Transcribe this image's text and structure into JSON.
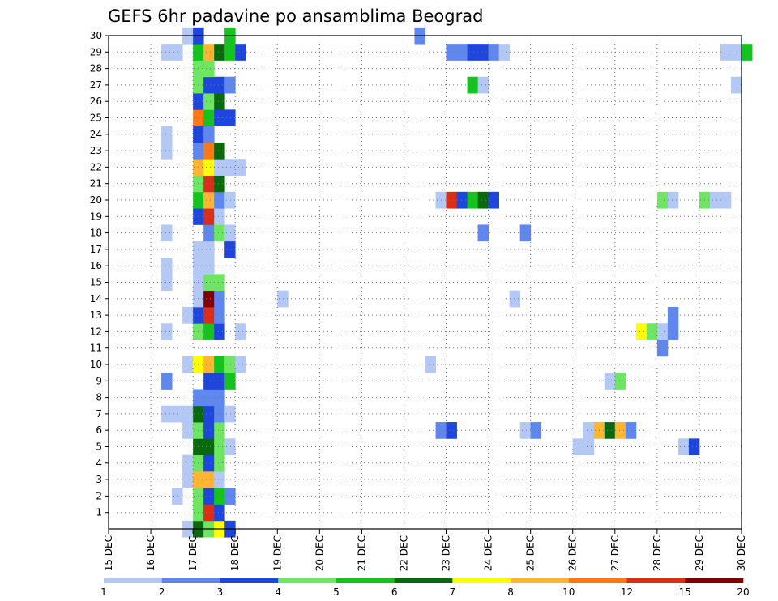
{
  "chart_data": {
    "type": "heatmap",
    "title": "GEFS 6hr padavine po ansamblima Beograd",
    "xlabel": "",
    "ylabel": "",
    "x_tick_labels": [
      "15 DEC",
      "16 DEC",
      "17 DEC",
      "18 DEC",
      "19 DEC",
      "20 DEC",
      "21 DEC",
      "22 DEC",
      "23 DEC",
      "24 DEC",
      "25 DEC",
      "26 DEC",
      "27 DEC",
      "28 DEC",
      "29 DEC",
      "30 DEC"
    ],
    "x_range_days": [
      15,
      30
    ],
    "x_step_hours": 6,
    "y_range": [
      0,
      30
    ],
    "y_tick_labels": [
      "1",
      "2",
      "3",
      "4",
      "5",
      "6",
      "7",
      "8",
      "9",
      "10",
      "11",
      "12",
      "13",
      "14",
      "15",
      "16",
      "17",
      "18",
      "19",
      "20",
      "21",
      "22",
      "23",
      "24",
      "25",
      "26",
      "27",
      "28",
      "29",
      "30"
    ],
    "grid": true,
    "value_unit": "",
    "colorbar": {
      "labels": [
        "1",
        "2",
        "3",
        "4",
        "5",
        "6",
        "7",
        "8",
        "10",
        "12",
        "15",
        "20"
      ],
      "colors": [
        "#b4c8f5",
        "#5f87ee",
        "#1e46dc",
        "#6ee664",
        "#14c31e",
        "#0a690f",
        "#ffff00",
        "#ffb432",
        "#ff7814",
        "#dc2d19",
        "#820000"
      ]
    },
    "levels": [
      {
        "min": 1,
        "max": 2,
        "color": "#b4c8f5"
      },
      {
        "min": 2,
        "max": 3,
        "color": "#5f87ee"
      },
      {
        "min": 3,
        "max": 4,
        "color": "#1e46dc"
      },
      {
        "min": 4,
        "max": 5,
        "color": "#6ee664"
      },
      {
        "min": 5,
        "max": 6,
        "color": "#14c31e"
      },
      {
        "min": 6,
        "max": 7,
        "color": "#0a690f"
      },
      {
        "min": 7,
        "max": 8,
        "color": "#ffff00"
      },
      {
        "min": 8,
        "max": 10,
        "color": "#ffb432"
      },
      {
        "min": 10,
        "max": 12,
        "color": "#ff7814"
      },
      {
        "min": 12,
        "max": 15,
        "color": "#dc2d19"
      },
      {
        "min": 15,
        "max": 20,
        "color": "#820000"
      }
    ],
    "cells": [
      [
        0,
        "16 DEC 18Z",
        1.5
      ],
      [
        0,
        "17 DEC 00Z",
        6.5
      ],
      [
        0,
        "17 DEC 06Z",
        4.5
      ],
      [
        0,
        "17 DEC 12Z",
        7.5
      ],
      [
        0,
        "17 DEC 18Z",
        3.5
      ],
      [
        1,
        "17 DEC 00Z",
        4.5
      ],
      [
        1,
        "17 DEC 06Z",
        12.5
      ],
      [
        1,
        "17 DEC 12Z",
        3.5
      ],
      [
        2,
        "16 DEC 12Z",
        1.5
      ],
      [
        2,
        "17 DEC 00Z",
        4.5
      ],
      [
        2,
        "17 DEC 06Z",
        3.5
      ],
      [
        2,
        "17 DEC 12Z",
        5.5
      ],
      [
        2,
        "17 DEC 18Z",
        2.5
      ],
      [
        3,
        "16 DEC 18Z",
        1.5
      ],
      [
        3,
        "17 DEC 00Z",
        9
      ],
      [
        3,
        "17 DEC 06Z",
        9
      ],
      [
        3,
        "17 DEC 12Z",
        1.5
      ],
      [
        4,
        "16 DEC 18Z",
        1.5
      ],
      [
        4,
        "17 DEC 00Z",
        4.5
      ],
      [
        4,
        "17 DEC 06Z",
        3.5
      ],
      [
        4,
        "17 DEC 12Z",
        4.5
      ],
      [
        5,
        "17 DEC 00Z",
        6.5
      ],
      [
        5,
        "17 DEC 06Z",
        6.5
      ],
      [
        5,
        "17 DEC 12Z",
        4.5
      ],
      [
        5,
        "17 DEC 18Z",
        1.5
      ],
      [
        5,
        "26 DEC 00Z",
        1.5
      ],
      [
        5,
        "26 DEC 06Z",
        1.5
      ],
      [
        5,
        "28 DEC 12Z",
        1.5
      ],
      [
        5,
        "28 DEC 18Z",
        3.5
      ],
      [
        6,
        "16 DEC 18Z",
        1.5
      ],
      [
        6,
        "17 DEC 00Z",
        4.5
      ],
      [
        6,
        "17 DEC 06Z",
        3.5
      ],
      [
        6,
        "17 DEC 12Z",
        4.5
      ],
      [
        6,
        "22 DEC 18Z",
        2.5
      ],
      [
        6,
        "23 DEC 00Z",
        3.5
      ],
      [
        6,
        "24 DEC 18Z",
        1.5
      ],
      [
        6,
        "25 DEC 00Z",
        2.5
      ],
      [
        6,
        "26 DEC 06Z",
        1.5
      ],
      [
        6,
        "26 DEC 12Z",
        9
      ],
      [
        6,
        "26 DEC 18Z",
        6.5
      ],
      [
        6,
        "27 DEC 00Z",
        9
      ],
      [
        6,
        "27 DEC 06Z",
        2.5
      ],
      [
        7,
        "16 DEC 06Z",
        1.5
      ],
      [
        7,
        "16 DEC 12Z",
        1.5
      ],
      [
        7,
        "16 DEC 18Z",
        1.5
      ],
      [
        7,
        "17 DEC 00Z",
        6.5
      ],
      [
        7,
        "17 DEC 06Z",
        3.5
      ],
      [
        7,
        "17 DEC 12Z",
        2.5
      ],
      [
        7,
        "17 DEC 18Z",
        1.5
      ],
      [
        8,
        "17 DEC 00Z",
        2.5
      ],
      [
        8,
        "17 DEC 06Z",
        2.5
      ],
      [
        8,
        "17 DEC 12Z",
        2.5
      ],
      [
        9,
        "16 DEC 06Z",
        2.5
      ],
      [
        9,
        "17 DEC 06Z",
        3.5
      ],
      [
        9,
        "17 DEC 12Z",
        3.5
      ],
      [
        9,
        "17 DEC 18Z",
        5.5
      ],
      [
        9,
        "26 DEC 18Z",
        1.5
      ],
      [
        9,
        "27 DEC 00Z",
        4.5
      ],
      [
        10,
        "16 DEC 18Z",
        1.5
      ],
      [
        10,
        "17 DEC 00Z",
        7.5
      ],
      [
        10,
        "17 DEC 06Z",
        9
      ],
      [
        10,
        "17 DEC 12Z",
        5.5
      ],
      [
        10,
        "17 DEC 18Z",
        4.5
      ],
      [
        10,
        "18 DEC 00Z",
        1.5
      ],
      [
        10,
        "22 DEC 12Z",
        1.5
      ],
      [
        11,
        "28 DEC 00Z",
        2.5
      ],
      [
        12,
        "16 DEC 06Z",
        1.5
      ],
      [
        12,
        "17 DEC 00Z",
        4.5
      ],
      [
        12,
        "17 DEC 06Z",
        5.5
      ],
      [
        12,
        "17 DEC 12Z",
        3.5
      ],
      [
        12,
        "18 DEC 00Z",
        1.5
      ],
      [
        12,
        "27 DEC 12Z",
        7.5
      ],
      [
        12,
        "27 DEC 18Z",
        4.5
      ],
      [
        12,
        "28 DEC 00Z",
        1.5
      ],
      [
        12,
        "28 DEC 06Z",
        2.5
      ],
      [
        13,
        "16 DEC 18Z",
        1.5
      ],
      [
        13,
        "17 DEC 00Z",
        3.5
      ],
      [
        13,
        "17 DEC 06Z",
        12.5
      ],
      [
        13,
        "17 DEC 12Z",
        2.5
      ],
      [
        13,
        "28 DEC 06Z",
        2.5
      ],
      [
        14,
        "17 DEC 00Z",
        1.5
      ],
      [
        14,
        "17 DEC 06Z",
        17
      ],
      [
        14,
        "17 DEC 12Z",
        2.5
      ],
      [
        14,
        "19 DEC 00Z",
        1.5
      ],
      [
        14,
        "24 DEC 12Z",
        1.5
      ],
      [
        15,
        "16 DEC 06Z",
        1.5
      ],
      [
        15,
        "17 DEC 00Z",
        1.5
      ],
      [
        15,
        "17 DEC 06Z",
        4.5
      ],
      [
        15,
        "17 DEC 12Z",
        4.5
      ],
      [
        16,
        "16 DEC 06Z",
        1.5
      ],
      [
        16,
        "17 DEC 00Z",
        1.5
      ],
      [
        16,
        "17 DEC 06Z",
        1.5
      ],
      [
        17,
        "17 DEC 00Z",
        1.5
      ],
      [
        17,
        "17 DEC 06Z",
        1.5
      ],
      [
        17,
        "17 DEC 18Z",
        3.5
      ],
      [
        18,
        "16 DEC 06Z",
        1.5
      ],
      [
        18,
        "17 DEC 06Z",
        2.5
      ],
      [
        18,
        "17 DEC 12Z",
        4.5
      ],
      [
        18,
        "17 DEC 18Z",
        1.5
      ],
      [
        18,
        "23 DEC 18Z",
        2.5
      ],
      [
        18,
        "24 DEC 18Z",
        2.5
      ],
      [
        19,
        "17 DEC 00Z",
        3.5
      ],
      [
        19,
        "17 DEC 06Z",
        12.5
      ],
      [
        19,
        "17 DEC 12Z",
        1.5
      ],
      [
        20,
        "17 DEC 00Z",
        5.5
      ],
      [
        20,
        "17 DEC 06Z",
        9
      ],
      [
        20,
        "17 DEC 12Z",
        2.5
      ],
      [
        20,
        "17 DEC 18Z",
        1.5
      ],
      [
        20,
        "22 DEC 18Z",
        1.5
      ],
      [
        20,
        "23 DEC 00Z",
        12.5
      ],
      [
        20,
        "23 DEC 06Z",
        3.5
      ],
      [
        20,
        "23 DEC 12Z",
        5.5
      ],
      [
        20,
        "23 DEC 18Z",
        6.5
      ],
      [
        20,
        "24 DEC 00Z",
        3.5
      ],
      [
        20,
        "28 DEC 00Z",
        4.5
      ],
      [
        20,
        "28 DEC 06Z",
        1.5
      ],
      [
        20,
        "29 DEC 00Z",
        4.5
      ],
      [
        20,
        "29 DEC 06Z",
        1.5
      ],
      [
        20,
        "29 DEC 12Z",
        1.5
      ],
      [
        21,
        "17 DEC 00Z",
        4.5
      ],
      [
        21,
        "17 DEC 06Z",
        12.5
      ],
      [
        21,
        "17 DEC 12Z",
        6.5
      ],
      [
        22,
        "17 DEC 00Z",
        9
      ],
      [
        22,
        "17 DEC 06Z",
        7.5
      ],
      [
        22,
        "17 DEC 12Z",
        1.5
      ],
      [
        22,
        "17 DEC 18Z",
        1.5
      ],
      [
        22,
        "18 DEC 00Z",
        1.5
      ],
      [
        23,
        "16 DEC 06Z",
        1.5
      ],
      [
        23,
        "17 DEC 00Z",
        2.5
      ],
      [
        23,
        "17 DEC 06Z",
        10
      ],
      [
        23,
        "17 DEC 12Z",
        6.5
      ],
      [
        24,
        "16 DEC 06Z",
        1.5
      ],
      [
        24,
        "17 DEC 00Z",
        3.5
      ],
      [
        24,
        "17 DEC 06Z",
        2.5
      ],
      [
        25,
        "17 DEC 00Z",
        10
      ],
      [
        25,
        "17 DEC 06Z",
        5.5
      ],
      [
        25,
        "17 DEC 12Z",
        3.5
      ],
      [
        25,
        "17 DEC 18Z",
        3.5
      ],
      [
        26,
        "17 DEC 00Z",
        3.5
      ],
      [
        26,
        "17 DEC 06Z",
        4.5
      ],
      [
        26,
        "17 DEC 12Z",
        6.5
      ],
      [
        27,
        "17 DEC 00Z",
        4.5
      ],
      [
        27,
        "17 DEC 06Z",
        3.5
      ],
      [
        27,
        "17 DEC 12Z",
        3.5
      ],
      [
        27,
        "17 DEC 18Z",
        2.5
      ],
      [
        27,
        "23 DEC 12Z",
        5.5
      ],
      [
        27,
        "23 DEC 18Z",
        1.5
      ],
      [
        27,
        "29 DEC 18Z",
        1.5
      ],
      [
        28,
        "17 DEC 00Z",
        4.5
      ],
      [
        28,
        "17 DEC 06Z",
        4.5
      ],
      [
        29,
        "16 DEC 06Z",
        1.5
      ],
      [
        29,
        "16 DEC 12Z",
        1.5
      ],
      [
        29,
        "17 DEC 00Z",
        5.5
      ],
      [
        29,
        "17 DEC 06Z",
        9
      ],
      [
        29,
        "17 DEC 12Z",
        6.5
      ],
      [
        29,
        "17 DEC 18Z",
        5.5
      ],
      [
        29,
        "18 DEC 00Z",
        3.5
      ],
      [
        29,
        "23 DEC 00Z",
        2.5
      ],
      [
        29,
        "23 DEC 06Z",
        2.5
      ],
      [
        29,
        "23 DEC 12Z",
        3.5
      ],
      [
        29,
        "23 DEC 18Z",
        3.5
      ],
      [
        29,
        "24 DEC 00Z",
        2.5
      ],
      [
        29,
        "24 DEC 06Z",
        1.5
      ],
      [
        29,
        "29 DEC 12Z",
        1.5
      ],
      [
        29,
        "29 DEC 18Z",
        1.5
      ],
      [
        29,
        "30 DEC 00Z",
        5.5
      ],
      [
        30,
        "16 DEC 18Z",
        1.5
      ],
      [
        30,
        "17 DEC 00Z",
        3.5
      ],
      [
        30,
        "17 DEC 18Z",
        5.5
      ],
      [
        30,
        "22 DEC 06Z",
        2.5
      ]
    ]
  }
}
